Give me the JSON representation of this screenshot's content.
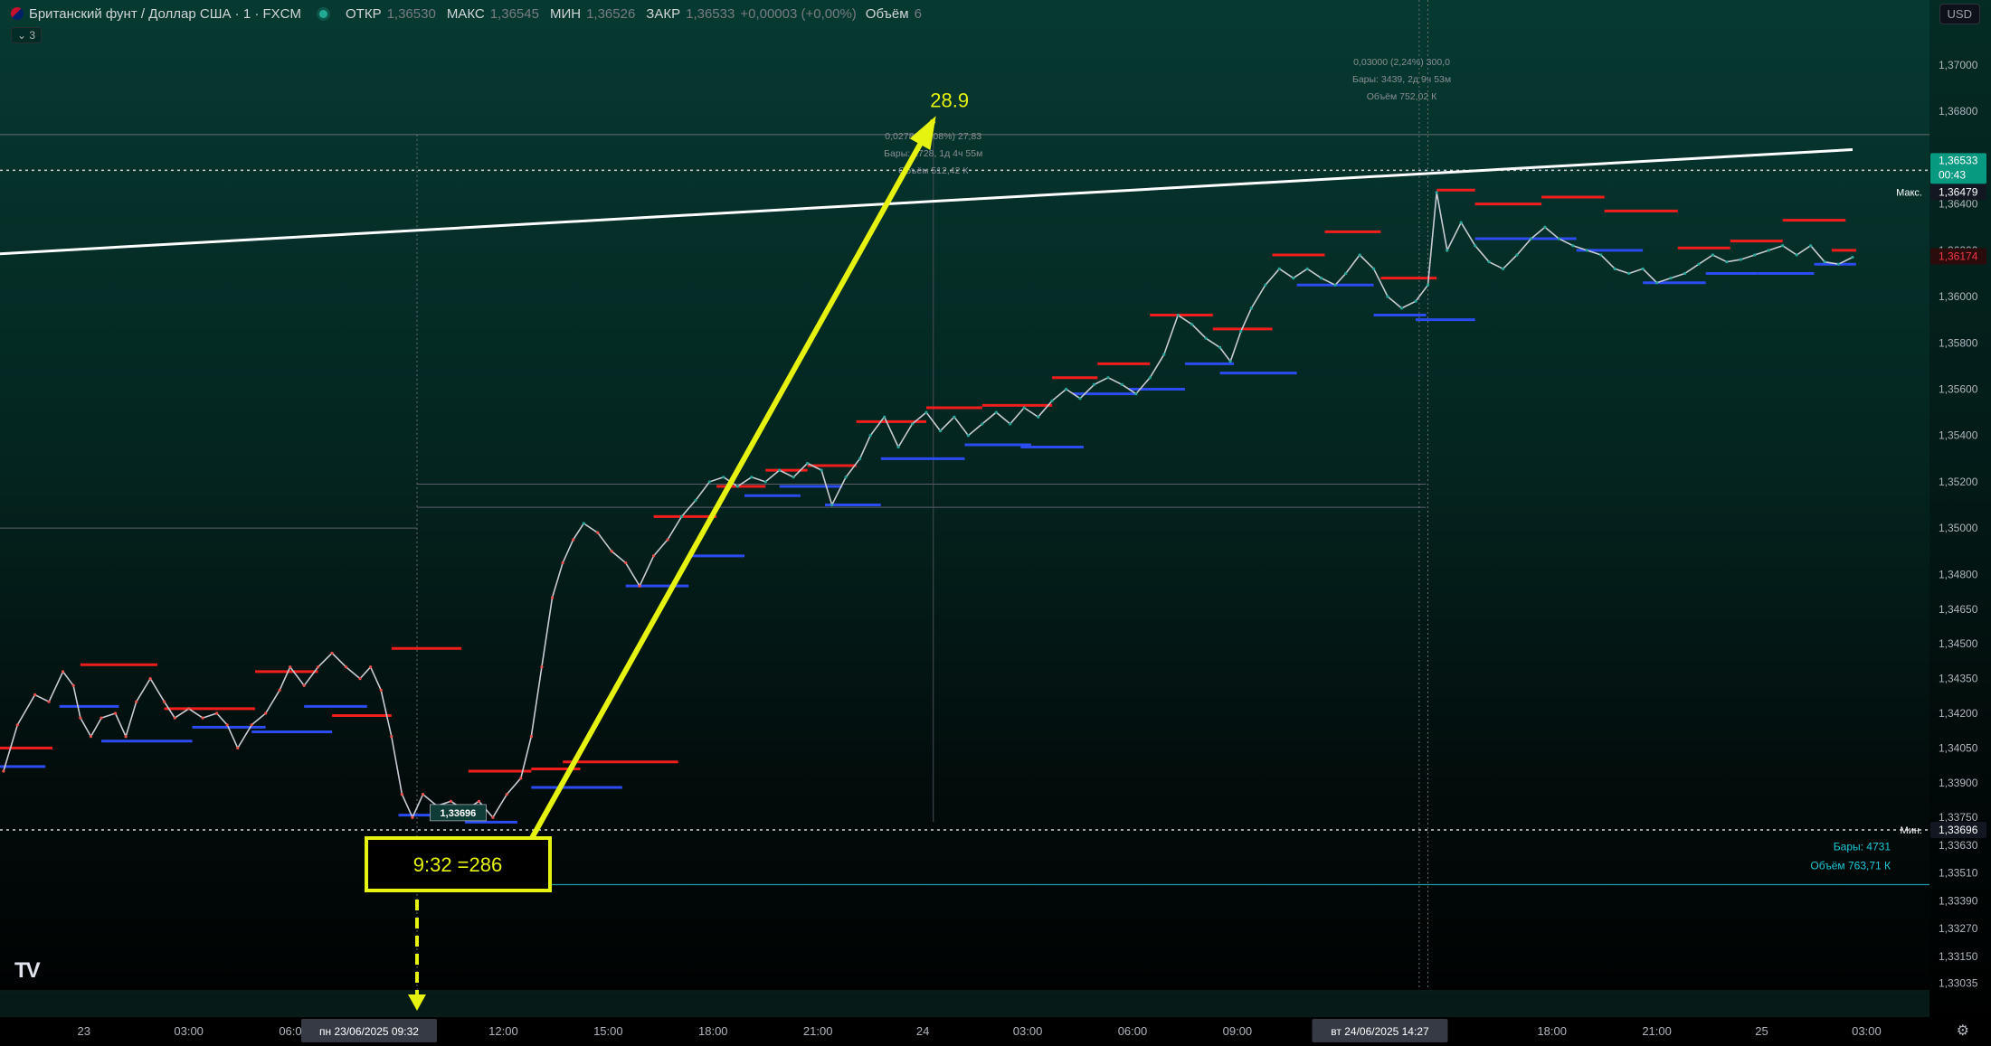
{
  "header": {
    "symbol": "Британский фунт / Доллар США · 1 · FXCM",
    "open_label": "ОТКР",
    "open": "1,36530",
    "high_label": "МАКС",
    "high": "1,36545",
    "low_label": "МИН",
    "low": "1,36526",
    "close_label": "ЗАКР",
    "close": "1,36533",
    "change": "+0,00003 (+0,00%)",
    "volume_label": "Объём",
    "volume": "6",
    "indicators_toggle": "3"
  },
  "currency_button": "USD",
  "chart_data": {
    "type": "line",
    "title": "Британский фунт / Доллар США · 1 · FXCM",
    "ylim": [
      1.33005,
      1.37125
    ],
    "y_ticks": [
      1.37,
      1.368,
      1.366,
      1.364,
      1.362,
      1.36,
      1.358,
      1.356,
      1.354,
      1.352,
      1.35,
      1.348,
      1.3465,
      1.345,
      1.3435,
      1.342,
      1.3405,
      1.339,
      1.3375,
      1.3363,
      1.3351,
      1.3339,
      1.3327,
      1.3315,
      1.33035
    ],
    "y_tick_labels": [
      "1,37000",
      "1,36800",
      "1,36600",
      "1,36400",
      "1,36200",
      "1,36000",
      "1,35800",
      "1,35600",
      "1,35400",
      "1,35200",
      "1,35000",
      "1,34800",
      "1,34650",
      "1,34500",
      "1,34350",
      "1,34200",
      "1,34050",
      "1,33900",
      "1,33750",
      "1,33630",
      "1,33510",
      "1,33390",
      "1,33270",
      "1,33150",
      "1,33035"
    ],
    "x_tick_labels": [
      {
        "label": "23",
        "x": 0.5
      },
      {
        "label": "03:00",
        "x": 3.5
      },
      {
        "label": "06:00",
        "x": 6.5
      },
      {
        "label": "12:00",
        "x": 12.5
      },
      {
        "label": "15:00",
        "x": 15.5
      },
      {
        "label": "18:00",
        "x": 18.5
      },
      {
        "label": "21:00",
        "x": 21.5
      },
      {
        "label": "24",
        "x": 24.5
      },
      {
        "label": "03:00",
        "x": 27.5
      },
      {
        "label": "06:00",
        "x": 30.5
      },
      {
        "label": "09:00",
        "x": 33.5
      },
      {
        "label": "12:00",
        "x": 36.5
      },
      {
        "label": "18:00",
        "x": 42.5
      },
      {
        "label": "21:00",
        "x": 45.5
      },
      {
        "label": "25",
        "x": 48.5
      },
      {
        "label": "03:00",
        "x": 51.5
      }
    ],
    "x_range_hours": [
      -1.9,
      53.3
    ],
    "x_cursor_labels": [
      {
        "label": "пн 23/06/2025   09:32",
        "x": 10.03
      },
      {
        "label": "вт 24/06/2025   14:27",
        "x": 38.95
      }
    ],
    "series": [
      {
        "color": "#d1d4dc",
        "points": [
          [
            -1.8,
            1.3395
          ],
          [
            -1.4,
            1.3415
          ],
          [
            -0.9,
            1.3428
          ],
          [
            -0.5,
            1.3425
          ],
          [
            -0.1,
            1.3438
          ],
          [
            0.2,
            1.3432
          ],
          [
            0.4,
            1.3418
          ],
          [
            0.7,
            1.341
          ],
          [
            1.0,
            1.3418
          ],
          [
            1.4,
            1.342
          ],
          [
            1.7,
            1.341
          ],
          [
            2.0,
            1.3425
          ],
          [
            2.4,
            1.3435
          ],
          [
            2.8,
            1.3425
          ],
          [
            3.1,
            1.3418
          ],
          [
            3.5,
            1.3422
          ],
          [
            3.9,
            1.3418
          ],
          [
            4.3,
            1.342
          ],
          [
            4.6,
            1.3415
          ],
          [
            4.9,
            1.3405
          ],
          [
            5.3,
            1.3415
          ],
          [
            5.7,
            1.342
          ],
          [
            6.1,
            1.343
          ],
          [
            6.4,
            1.344
          ],
          [
            6.8,
            1.3432
          ],
          [
            7.2,
            1.344
          ],
          [
            7.6,
            1.3446
          ],
          [
            8.0,
            1.344
          ],
          [
            8.4,
            1.3435
          ],
          [
            8.7,
            1.344
          ],
          [
            9.0,
            1.343
          ],
          [
            9.3,
            1.341
          ],
          [
            9.6,
            1.3385
          ],
          [
            9.9,
            1.3375
          ],
          [
            10.2,
            1.3385
          ],
          [
            10.6,
            1.338
          ],
          [
            11.0,
            1.3382
          ],
          [
            11.4,
            1.3378
          ],
          [
            11.8,
            1.3382
          ],
          [
            12.2,
            1.3375
          ],
          [
            12.6,
            1.3385
          ],
          [
            13.0,
            1.3392
          ],
          [
            13.3,
            1.341
          ],
          [
            13.6,
            1.344
          ],
          [
            13.9,
            1.347
          ],
          [
            14.2,
            1.3485
          ],
          [
            14.5,
            1.3495
          ],
          [
            14.8,
            1.3502
          ],
          [
            15.2,
            1.3498
          ],
          [
            15.6,
            1.349
          ],
          [
            16.0,
            1.3485
          ],
          [
            16.4,
            1.3475
          ],
          [
            16.8,
            1.3488
          ],
          [
            17.2,
            1.3495
          ],
          [
            17.6,
            1.3505
          ],
          [
            18.0,
            1.3512
          ],
          [
            18.4,
            1.352
          ],
          [
            18.8,
            1.3522
          ],
          [
            19.2,
            1.3518
          ],
          [
            19.6,
            1.3522
          ],
          [
            20.0,
            1.352
          ],
          [
            20.4,
            1.3525
          ],
          [
            20.8,
            1.3522
          ],
          [
            21.2,
            1.3528
          ],
          [
            21.6,
            1.3525
          ],
          [
            21.9,
            1.351
          ],
          [
            22.3,
            1.3522
          ],
          [
            22.7,
            1.353
          ],
          [
            23.0,
            1.354
          ],
          [
            23.4,
            1.3548
          ],
          [
            23.8,
            1.3535
          ],
          [
            24.2,
            1.3545
          ],
          [
            24.6,
            1.355
          ],
          [
            25.0,
            1.3542
          ],
          [
            25.4,
            1.3548
          ],
          [
            25.8,
            1.354
          ],
          [
            26.2,
            1.3545
          ],
          [
            26.6,
            1.355
          ],
          [
            27.0,
            1.3545
          ],
          [
            27.4,
            1.3552
          ],
          [
            27.8,
            1.3548
          ],
          [
            28.2,
            1.3555
          ],
          [
            28.6,
            1.356
          ],
          [
            29.0,
            1.3556
          ],
          [
            29.4,
            1.3562
          ],
          [
            29.8,
            1.3565
          ],
          [
            30.2,
            1.3562
          ],
          [
            30.6,
            1.3558
          ],
          [
            31.0,
            1.3565
          ],
          [
            31.4,
            1.3575
          ],
          [
            31.8,
            1.3592
          ],
          [
            32.2,
            1.3588
          ],
          [
            32.6,
            1.3582
          ],
          [
            33.0,
            1.3578
          ],
          [
            33.3,
            1.3572
          ],
          [
            33.6,
            1.3585
          ],
          [
            33.9,
            1.3595
          ],
          [
            34.3,
            1.3605
          ],
          [
            34.7,
            1.3612
          ],
          [
            35.1,
            1.3608
          ],
          [
            35.5,
            1.3612
          ],
          [
            35.9,
            1.3608
          ],
          [
            36.3,
            1.3605
          ],
          [
            36.6,
            1.361
          ],
          [
            37.0,
            1.3618
          ],
          [
            37.4,
            1.3612
          ],
          [
            37.8,
            1.36
          ],
          [
            38.2,
            1.3595
          ],
          [
            38.6,
            1.3598
          ],
          [
            38.95,
            1.3605
          ],
          [
            39.2,
            1.3645
          ],
          [
            39.5,
            1.362
          ],
          [
            39.9,
            1.3632
          ],
          [
            40.3,
            1.3622
          ],
          [
            40.7,
            1.3615
          ],
          [
            41.1,
            1.3612
          ],
          [
            41.5,
            1.3618
          ],
          [
            41.9,
            1.3625
          ],
          [
            42.3,
            1.363
          ],
          [
            42.7,
            1.3625
          ],
          [
            43.1,
            1.3622
          ],
          [
            43.5,
            1.362
          ],
          [
            43.9,
            1.3618
          ],
          [
            44.3,
            1.3612
          ],
          [
            44.7,
            1.361
          ],
          [
            45.1,
            1.3612
          ],
          [
            45.5,
            1.3606
          ],
          [
            45.9,
            1.3608
          ],
          [
            46.3,
            1.361
          ],
          [
            46.7,
            1.3614
          ],
          [
            47.1,
            1.3618
          ],
          [
            47.5,
            1.3615
          ],
          [
            47.9,
            1.3616
          ],
          [
            48.3,
            1.3618
          ],
          [
            48.7,
            1.362
          ],
          [
            49.1,
            1.3622
          ],
          [
            49.5,
            1.3618
          ],
          [
            49.9,
            1.3622
          ],
          [
            50.3,
            1.3615
          ],
          [
            50.7,
            1.3614
          ],
          [
            51.1,
            1.3617
          ]
        ]
      }
    ],
    "annotations": {
      "trendline": {
        "x1": -1.9,
        "y1": 1.36185,
        "x2": 51.1,
        "y2": 1.36635,
        "color": "#ffffff"
      },
      "max_line": {
        "y": 1.36479,
        "label": "Макс.",
        "value": "1,36479"
      },
      "min_line": {
        "y": 1.33696,
        "label": "Мин.",
        "value": "1,33696"
      },
      "current_price": {
        "value": "1,36533",
        "countdown": "00:43"
      },
      "secondary_price": {
        "value": "1,36174"
      },
      "min_marker": {
        "x": 10.3,
        "y": 1.3372,
        "label": "1,33696"
      },
      "teal_line": {
        "y": 1.3346
      },
      "teal_info": [
        "Бары: 4731",
        "Объём 763,71 К"
      ],
      "measure1": {
        "x1": 10.03,
        "x2": 38.9,
        "y1": 1.3373,
        "y2": 1.367,
        "lines": [
          "0,02783 (2,08%) 27,83",
          "Бары: 1728, 1д 4ч 55м",
          "Объём 512,42 К"
        ]
      },
      "measure2": {
        "x1": 38.95,
        "x2": 38.95,
        "lines": [
          "0,03000 (2,24%) 300,0",
          "Бары: 3439, 2д 9ч 53м",
          "Объём 752,02 К"
        ]
      },
      "h_ref_line": {
        "y": 1.3519
      },
      "h_ref_line2": {
        "y": 1.3509
      },
      "big_arrow": {
        "x1": 13.2,
        "y1": 1.3363,
        "x2": 24.8,
        "y2": 1.3676,
        "label": "28.9"
      },
      "box_label": "9:32 =286",
      "dashed_arrow_x": 10.03
    },
    "resistance_segments": [
      [
        -1.9,
        -0.4,
        1.3405
      ],
      [
        0.4,
        2.6,
        1.3441
      ],
      [
        2.8,
        5.4,
        1.3422
      ],
      [
        5.4,
        7.2,
        1.3438
      ],
      [
        7.6,
        9.3,
        1.3419
      ],
      [
        9.3,
        11.3,
        1.3448
      ],
      [
        11.5,
        13.3,
        1.3395
      ],
      [
        13.3,
        14.7,
        1.3396
      ],
      [
        14.2,
        17.5,
        1.3399
      ],
      [
        16.8,
        18.6,
        1.3505
      ],
      [
        18.6,
        20.0,
        1.3518
      ],
      [
        20.0,
        21.2,
        1.3525
      ],
      [
        21.2,
        22.6,
        1.3527
      ],
      [
        22.6,
        24.6,
        1.3546
      ],
      [
        24.6,
        26.2,
        1.3552
      ],
      [
        26.2,
        28.2,
        1.3553
      ],
      [
        28.2,
        29.5,
        1.3565
      ],
      [
        29.5,
        31.0,
        1.3571
      ],
      [
        31.0,
        32.8,
        1.3592
      ],
      [
        32.8,
        34.5,
        1.3586
      ],
      [
        34.5,
        36.0,
        1.3618
      ],
      [
        36.0,
        37.6,
        1.3628
      ],
      [
        37.6,
        39.2,
        1.3608
      ],
      [
        39.2,
        40.3,
        1.3646
      ],
      [
        40.3,
        42.2,
        1.364
      ],
      [
        42.2,
        44.0,
        1.3643
      ],
      [
        44.0,
        46.1,
        1.3637
      ],
      [
        46.1,
        47.6,
        1.3621
      ],
      [
        47.6,
        49.1,
        1.3624
      ],
      [
        49.1,
        50.9,
        1.3633
      ],
      [
        50.5,
        51.2,
        1.362
      ]
    ],
    "support_segments": [
      [
        -1.9,
        -0.6,
        1.3397
      ],
      [
        -0.2,
        1.5,
        1.3423
      ],
      [
        1.0,
        3.6,
        1.3408
      ],
      [
        3.6,
        5.7,
        1.3414
      ],
      [
        5.3,
        7.6,
        1.3412
      ],
      [
        6.8,
        8.6,
        1.3423
      ],
      [
        9.5,
        11.2,
        1.3376
      ],
      [
        11.4,
        12.9,
        1.3373
      ],
      [
        13.3,
        15.9,
        1.3388
      ],
      [
        16.0,
        17.8,
        1.3475
      ],
      [
        17.8,
        19.4,
        1.3488
      ],
      [
        19.4,
        21.0,
        1.3514
      ],
      [
        20.4,
        22.2,
        1.3518
      ],
      [
        21.7,
        23.3,
        1.351
      ],
      [
        23.3,
        25.7,
        1.353
      ],
      [
        25.7,
        27.6,
        1.3536
      ],
      [
        27.3,
        29.1,
        1.3535
      ],
      [
        28.8,
        30.6,
        1.3558
      ],
      [
        30.4,
        32.0,
        1.356
      ],
      [
        32.0,
        33.4,
        1.3571
      ],
      [
        33.0,
        35.2,
        1.3567
      ],
      [
        35.2,
        37.4,
        1.3605
      ],
      [
        37.4,
        38.9,
        1.3592
      ],
      [
        38.6,
        40.3,
        1.359
      ],
      [
        40.3,
        41.8,
        1.3625
      ],
      [
        41.8,
        43.2,
        1.3625
      ],
      [
        43.2,
        45.1,
        1.362
      ],
      [
        45.1,
        46.9,
        1.3606
      ],
      [
        46.9,
        48.4,
        1.361
      ],
      [
        48.4,
        50.0,
        1.361
      ],
      [
        50.0,
        51.2,
        1.3614
      ]
    ]
  }
}
